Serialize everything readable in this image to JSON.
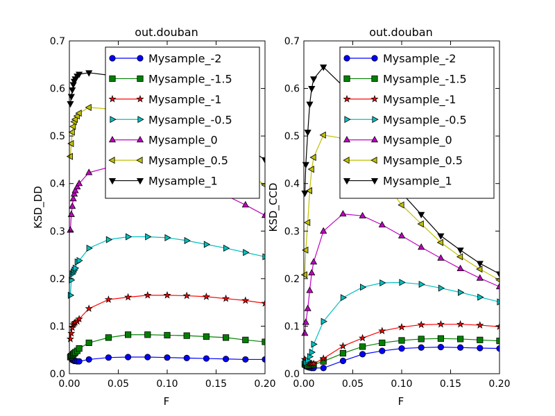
{
  "chart_data": [
    {
      "type": "line",
      "title": "out.douban",
      "xlabel": "F",
      "ylabel": "KSD_DD",
      "xlim": [
        0.0,
        0.2
      ],
      "ylim": [
        0.0,
        0.7
      ],
      "xticks": [
        "0.00",
        "0.05",
        "0.10",
        "0.15",
        "0.20"
      ],
      "yticks": [
        "0.0",
        "0.1",
        "0.2",
        "0.3",
        "0.4",
        "0.5",
        "0.6",
        "0.7"
      ],
      "grid": false,
      "legend_position": "top-right",
      "series": [
        {
          "name": "Mysample_-2",
          "color": "#0000ff",
          "marker": "circle",
          "x": [
            0.001,
            0.002,
            0.003,
            0.004,
            0.005,
            0.006,
            0.008,
            0.01,
            0.02,
            0.04,
            0.06,
            0.08,
            0.1,
            0.12,
            0.14,
            0.16,
            0.18,
            0.2
          ],
          "y": [
            0.038,
            0.032,
            0.029,
            0.028,
            0.027,
            0.027,
            0.026,
            0.026,
            0.03,
            0.034,
            0.035,
            0.035,
            0.034,
            0.033,
            0.032,
            0.031,
            0.03,
            0.03
          ]
        },
        {
          "name": "Mysample_-1.5",
          "color": "#008000",
          "marker": "square",
          "x": [
            0.001,
            0.002,
            0.003,
            0.004,
            0.005,
            0.006,
            0.008,
            0.01,
            0.02,
            0.04,
            0.06,
            0.08,
            0.1,
            0.12,
            0.14,
            0.16,
            0.18,
            0.2
          ],
          "y": [
            0.035,
            0.037,
            0.039,
            0.041,
            0.043,
            0.045,
            0.048,
            0.053,
            0.065,
            0.076,
            0.082,
            0.082,
            0.081,
            0.08,
            0.078,
            0.076,
            0.071,
            0.067
          ]
        },
        {
          "name": "Mysample_-1",
          "color": "#ff0000",
          "marker": "star",
          "x": [
            0.001,
            0.002,
            0.003,
            0.004,
            0.005,
            0.006,
            0.008,
            0.01,
            0.02,
            0.04,
            0.06,
            0.08,
            0.1,
            0.12,
            0.14,
            0.16,
            0.18,
            0.2
          ],
          "y": [
            0.073,
            0.085,
            0.097,
            0.103,
            0.106,
            0.108,
            0.11,
            0.115,
            0.137,
            0.156,
            0.161,
            0.165,
            0.165,
            0.164,
            0.162,
            0.158,
            0.154,
            0.148
          ]
        },
        {
          "name": "Mysample_-0.5",
          "color": "#00bfbf",
          "marker": "triangle-right",
          "x": [
            0.001,
            0.002,
            0.003,
            0.004,
            0.005,
            0.006,
            0.008,
            0.01,
            0.02,
            0.04,
            0.06,
            0.08,
            0.1,
            0.12,
            0.14,
            0.16,
            0.18,
            0.2
          ],
          "y": [
            0.165,
            0.197,
            0.21,
            0.214,
            0.218,
            0.222,
            0.235,
            0.238,
            0.264,
            0.282,
            0.288,
            0.288,
            0.286,
            0.28,
            0.272,
            0.264,
            0.255,
            0.246
          ]
        },
        {
          "name": "Mysample_0",
          "color": "#bf00bf",
          "marker": "triangle-up",
          "x": [
            0.001,
            0.002,
            0.003,
            0.004,
            0.005,
            0.006,
            0.008,
            0.01,
            0.02,
            0.04,
            0.06,
            0.08,
            0.1,
            0.12,
            0.14,
            0.16,
            0.18,
            0.2
          ],
          "y": [
            0.302,
            0.335,
            0.352,
            0.368,
            0.378,
            0.385,
            0.393,
            0.4,
            0.423,
            0.434,
            0.435,
            0.431,
            0.422,
            0.408,
            0.393,
            0.375,
            0.355,
            0.333
          ]
        },
        {
          "name": "Mysample_0.5",
          "color": "#bfbf00",
          "marker": "triangle-left",
          "x": [
            0.001,
            0.002,
            0.003,
            0.004,
            0.005,
            0.006,
            0.008,
            0.01,
            0.02,
            0.04,
            0.06,
            0.08,
            0.1,
            0.12,
            0.14,
            0.16,
            0.18,
            0.2
          ],
          "y": [
            0.457,
            0.484,
            0.508,
            0.52,
            0.53,
            0.535,
            0.542,
            0.548,
            0.56,
            0.557,
            0.55,
            0.536,
            0.515,
            0.495,
            0.47,
            0.447,
            0.423,
            0.397
          ]
        },
        {
          "name": "Mysample_1",
          "color": "#000000",
          "marker": "triangle-down",
          "x": [
            0.001,
            0.002,
            0.003,
            0.004,
            0.005,
            0.006,
            0.008,
            0.01,
            0.02,
            0.04,
            0.06,
            0.08,
            0.1,
            0.12,
            0.14,
            0.16,
            0.18,
            0.2
          ],
          "y": [
            0.568,
            0.583,
            0.597,
            0.608,
            0.615,
            0.62,
            0.626,
            0.63,
            0.633,
            0.628,
            0.618,
            0.602,
            0.58,
            0.555,
            0.53,
            0.505,
            0.478,
            0.45
          ]
        }
      ]
    },
    {
      "type": "line",
      "title": "out.douban",
      "xlabel": "F",
      "ylabel": "KSD_CCD",
      "xlim": [
        0.0,
        0.2
      ],
      "ylim": [
        0.0,
        0.7
      ],
      "xticks": [
        "0.00",
        "0.05",
        "0.10",
        "0.15",
        "0.20"
      ],
      "yticks": [
        "0.0",
        "0.1",
        "0.2",
        "0.3",
        "0.4",
        "0.5",
        "0.6",
        "0.7"
      ],
      "grid": false,
      "legend_position": "top-right",
      "series": [
        {
          "name": "Mysample_-2",
          "color": "#0000ff",
          "marker": "circle",
          "x": [
            0.001,
            0.002,
            0.004,
            0.006,
            0.008,
            0.01,
            0.02,
            0.04,
            0.06,
            0.08,
            0.1,
            0.12,
            0.14,
            0.16,
            0.18,
            0.2
          ],
          "y": [
            0.018,
            0.016,
            0.014,
            0.013,
            0.012,
            0.012,
            0.012,
            0.027,
            0.041,
            0.048,
            0.053,
            0.055,
            0.056,
            0.055,
            0.054,
            0.053
          ]
        },
        {
          "name": "Mysample_-1.5",
          "color": "#008000",
          "marker": "square",
          "x": [
            0.001,
            0.002,
            0.004,
            0.006,
            0.008,
            0.01,
            0.02,
            0.04,
            0.06,
            0.08,
            0.1,
            0.12,
            0.14,
            0.16,
            0.18,
            0.2
          ],
          "y": [
            0.02,
            0.019,
            0.017,
            0.017,
            0.018,
            0.019,
            0.026,
            0.043,
            0.057,
            0.065,
            0.07,
            0.073,
            0.074,
            0.073,
            0.071,
            0.069
          ]
        },
        {
          "name": "Mysample_-1",
          "color": "#ff0000",
          "marker": "star",
          "x": [
            0.001,
            0.002,
            0.004,
            0.006,
            0.008,
            0.01,
            0.02,
            0.04,
            0.06,
            0.08,
            0.1,
            0.12,
            0.14,
            0.16,
            0.18,
            0.2
          ],
          "y": [
            0.03,
            0.026,
            0.024,
            0.022,
            0.021,
            0.021,
            0.032,
            0.058,
            0.075,
            0.09,
            0.098,
            0.103,
            0.104,
            0.104,
            0.102,
            0.099
          ]
        },
        {
          "name": "Mysample_-0.5",
          "color": "#00bfbf",
          "marker": "triangle-right",
          "x": [
            0.001,
            0.002,
            0.004,
            0.006,
            0.008,
            0.01,
            0.02,
            0.04,
            0.06,
            0.08,
            0.1,
            0.12,
            0.14,
            0.16,
            0.18,
            0.2
          ],
          "y": [
            0.025,
            0.023,
            0.028,
            0.036,
            0.045,
            0.062,
            0.11,
            0.16,
            0.182,
            0.191,
            0.192,
            0.188,
            0.18,
            0.171,
            0.161,
            0.151
          ]
        },
        {
          "name": "Mysample_0",
          "color": "#bf00bf",
          "marker": "triangle-up",
          "x": [
            0.001,
            0.002,
            0.004,
            0.006,
            0.008,
            0.01,
            0.02,
            0.04,
            0.06,
            0.08,
            0.1,
            0.12,
            0.14,
            0.16,
            0.18,
            0.2
          ],
          "y": [
            0.085,
            0.108,
            0.137,
            0.175,
            0.212,
            0.235,
            0.3,
            0.336,
            0.332,
            0.313,
            0.29,
            0.266,
            0.243,
            0.221,
            0.201,
            0.183
          ]
        },
        {
          "name": "Mysample_0.5",
          "color": "#bfbf00",
          "marker": "triangle-left",
          "x": [
            0.001,
            0.002,
            0.004,
            0.006,
            0.008,
            0.01,
            0.02,
            0.04,
            0.06,
            0.08,
            0.1,
            0.12,
            0.14,
            0.16,
            0.18,
            0.2
          ],
          "y": [
            0.208,
            0.26,
            0.318,
            0.385,
            0.43,
            0.455,
            0.502,
            0.495,
            0.47,
            0.41,
            0.355,
            0.315,
            0.276,
            0.246,
            0.22,
            0.197
          ]
        },
        {
          "name": "Mysample_1",
          "color": "#000000",
          "marker": "triangle-down",
          "x": [
            0.001,
            0.002,
            0.004,
            0.006,
            0.008,
            0.01,
            0.02,
            0.04,
            0.06,
            0.08,
            0.1,
            0.12,
            0.14,
            0.16,
            0.18,
            0.2
          ],
          "y": [
            0.38,
            0.44,
            0.508,
            0.567,
            0.6,
            0.62,
            0.645,
            0.605,
            0.55,
            0.445,
            0.38,
            0.335,
            0.29,
            0.26,
            0.232,
            0.21
          ]
        }
      ]
    }
  ]
}
